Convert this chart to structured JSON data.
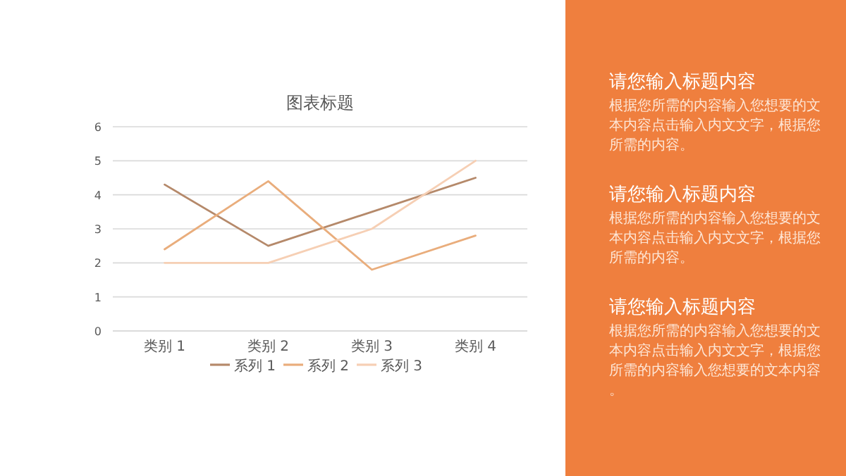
{
  "chart_data": [
    {
      "type": "line",
      "title": "图表标题",
      "categories": [
        "类别 1",
        "类别 2",
        "类别 3",
        "类别 4"
      ],
      "series": [
        {
          "name": "系列 1",
          "color": "#b5896a",
          "values": [
            4.3,
            2.5,
            3.5,
            4.5
          ]
        },
        {
          "name": "系列 2",
          "color": "#e9ad7c",
          "values": [
            2.4,
            4.4,
            1.8,
            2.8
          ]
        },
        {
          "name": "系列 3",
          "color": "#f6cfb4",
          "values": [
            2,
            2,
            3,
            5
          ]
        }
      ],
      "ylim": [
        0,
        6
      ],
      "yticks": [
        0,
        1,
        2,
        3,
        4,
        5,
        6
      ],
      "grid": "y",
      "legend": "bottom",
      "marker": "none",
      "line_style": "solid"
    },
    {
      "type": "other",
      "annotations": [
        "请您输入标题内容",
        "根据您所需的内容输入您想要的文本内容点击输入内文文字，根据您所需的内容。",
        "请您输入标题内容",
        "根据您所需的内容输入您想要的文本内容点击输入内文文字，根据您所需的内容。",
        "请您输入标题内容",
        "根据您所需的内容输入您想要的文本内容点击输入内文文字，根据您所需的内容输入您想要的文本内容。"
      ]
    }
  ]
}
